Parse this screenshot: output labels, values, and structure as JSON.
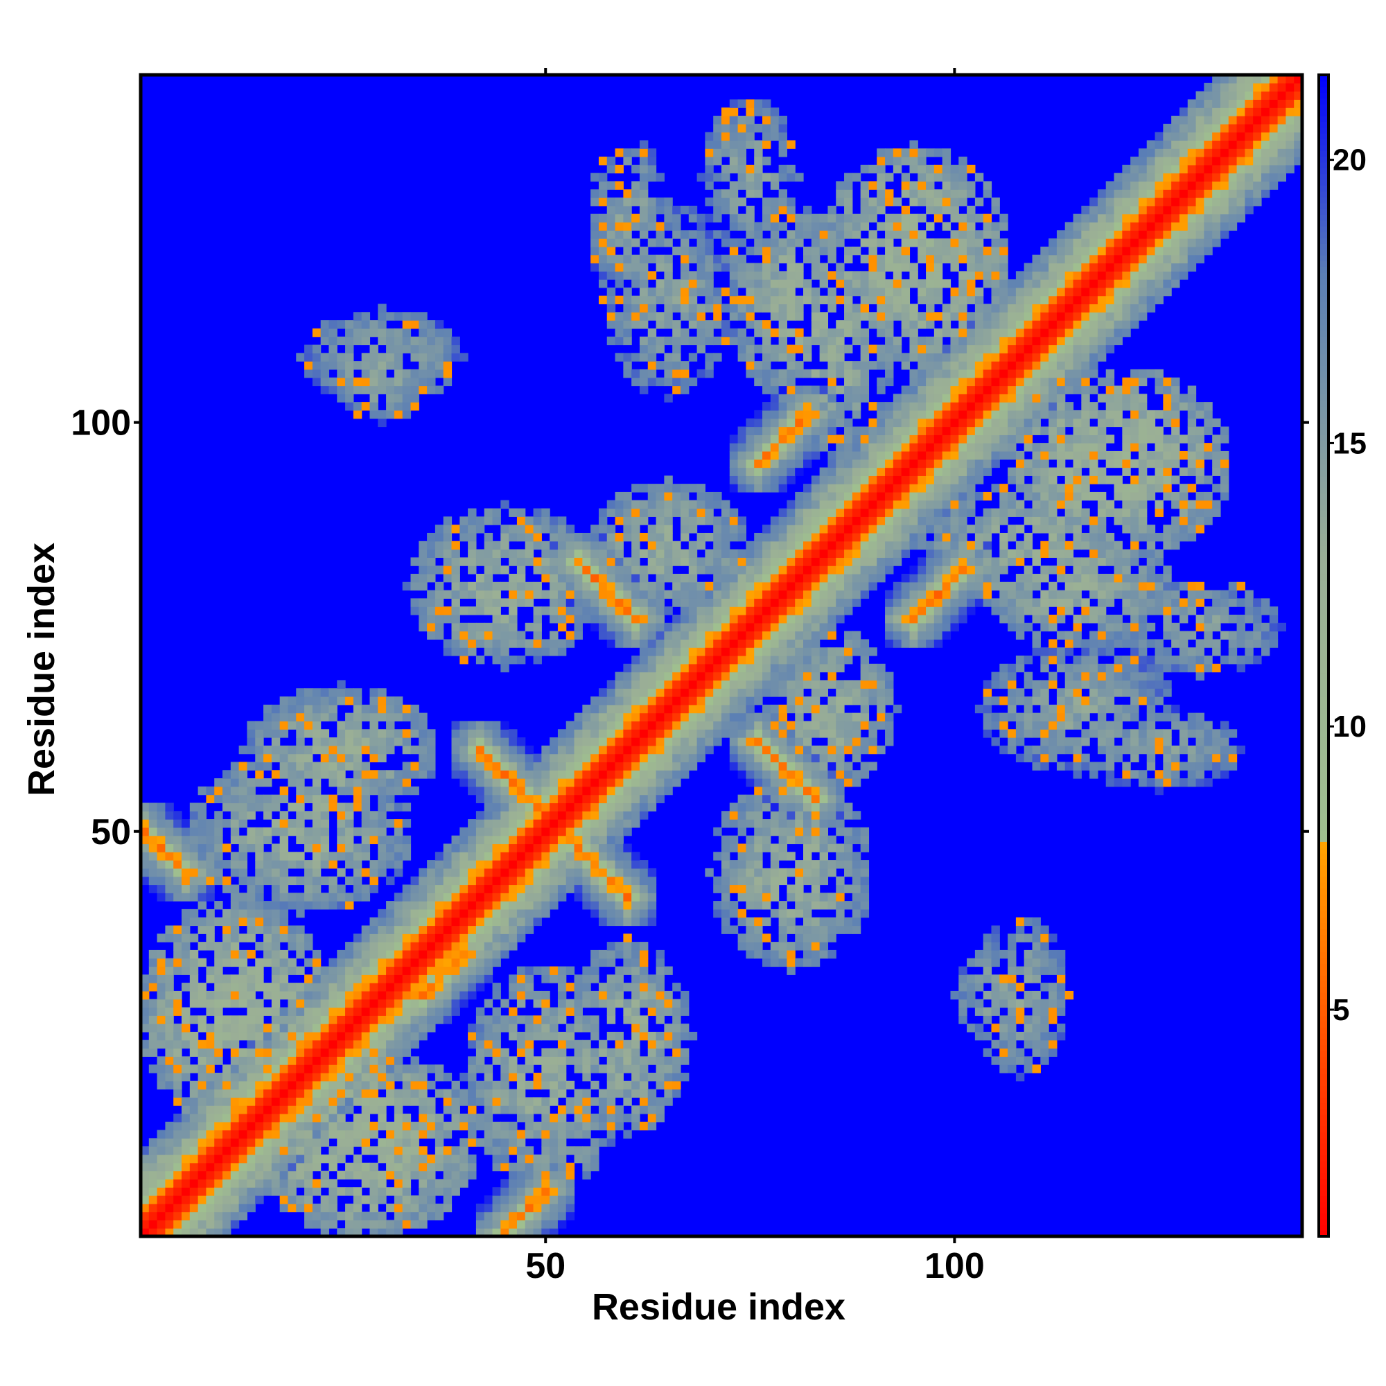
{
  "chart_data": {
    "type": "heatmap",
    "title": "",
    "xlabel": "Residue index",
    "ylabel": "Residue index",
    "n_residues": 142,
    "xlim": [
      1,
      142
    ],
    "ylim": [
      1,
      142
    ],
    "x_ticks": [
      50,
      100
    ],
    "y_ticks": [
      50,
      100
    ],
    "colorbar": {
      "min": 1,
      "max": 21.5,
      "ticks": [
        5,
        10,
        15,
        20
      ],
      "cutoff": 8,
      "stops": [
        {
          "value": 1,
          "color": "#ff0000"
        },
        {
          "value": 4,
          "color": "#ff4500"
        },
        {
          "value": 8,
          "color": "#ffa500"
        },
        {
          "value": 8.01,
          "color": "#9fbf8f"
        },
        {
          "value": 13,
          "color": "#9aae96"
        },
        {
          "value": 18,
          "color": "#5b7fb5"
        },
        {
          "value": 21.5,
          "color": "#0000ff"
        }
      ]
    },
    "background_value": 21.5,
    "diagonal_band": {
      "core_width": 2,
      "near_width": 4,
      "halo_width": 10
    },
    "contact_bands": [
      {
        "kind": "antiparallel",
        "i_from": 1,
        "i_to": 6,
        "j_from": 50,
        "j_to": 45
      },
      {
        "kind": "antiparallel",
        "i_from": 45,
        "i_to": 50,
        "j_from": 1,
        "j_to": 6
      },
      {
        "kind": "antiparallel",
        "i_from": 42,
        "i_to": 49,
        "j_from": 60,
        "j_to": 53
      },
      {
        "kind": "antiparallel",
        "i_from": 53,
        "i_to": 60,
        "j_from": 49,
        "j_to": 42
      },
      {
        "kind": "antiparallel",
        "i_from": 54,
        "i_to": 61,
        "j_from": 83,
        "j_to": 76
      },
      {
        "kind": "antiparallel",
        "i_from": 76,
        "i_to": 83,
        "j_from": 61,
        "j_to": 54
      },
      {
        "kind": "parallel",
        "i_from": 76,
        "i_to": 82,
        "j_from": 95,
        "j_to": 101
      },
      {
        "kind": "parallel",
        "i_from": 95,
        "i_to": 101,
        "j_from": 76,
        "j_to": 82
      },
      {
        "kind": "parallel",
        "i_from": 35,
        "i_to": 40,
        "j_from": 30,
        "j_to": 35
      }
    ],
    "contact_blobs": [
      {
        "i": 12,
        "j": 28,
        "ri": 12,
        "rj": 14,
        "value": 12
      },
      {
        "i": 28,
        "j": 12,
        "ri": 14,
        "rj": 12,
        "value": 12
      },
      {
        "i": 25,
        "j": 60,
        "ri": 12,
        "rj": 8,
        "value": 13
      },
      {
        "i": 60,
        "j": 25,
        "ri": 8,
        "rj": 12,
        "value": 13
      },
      {
        "i": 50,
        "j": 20,
        "ri": 10,
        "rj": 14,
        "value": 13
      },
      {
        "i": 20,
        "j": 50,
        "ri": 14,
        "rj": 10,
        "value": 13
      },
      {
        "i": 45,
        "j": 80,
        "ri": 12,
        "rj": 10,
        "value": 13
      },
      {
        "i": 80,
        "j": 45,
        "ri": 10,
        "rj": 12,
        "value": 13
      },
      {
        "i": 30,
        "j": 108,
        "ri": 10,
        "rj": 6,
        "value": 14
      },
      {
        "i": 108,
        "j": 30,
        "ri": 6,
        "rj": 10,
        "value": 14
      },
      {
        "i": 60,
        "j": 125,
        "ri": 5,
        "rj": 10,
        "value": 14
      },
      {
        "i": 125,
        "j": 60,
        "ri": 10,
        "rj": 5,
        "value": 14
      },
      {
        "i": 80,
        "j": 115,
        "ri": 8,
        "rj": 12,
        "value": 13
      },
      {
        "i": 115,
        "j": 80,
        "ri": 12,
        "rj": 8,
        "value": 13
      },
      {
        "i": 95,
        "j": 120,
        "ri": 12,
        "rj": 14,
        "value": 12
      },
      {
        "i": 120,
        "j": 95,
        "ri": 14,
        "rj": 12,
        "value": 12
      },
      {
        "i": 110,
        "j": 85,
        "ri": 14,
        "rj": 8,
        "value": 13
      },
      {
        "i": 85,
        "j": 110,
        "ri": 8,
        "rj": 14,
        "value": 13
      },
      {
        "i": 115,
        "j": 65,
        "ri": 12,
        "rj": 8,
        "value": 14
      },
      {
        "i": 65,
        "j": 115,
        "ri": 8,
        "rj": 12,
        "value": 14
      },
      {
        "i": 105,
        "j": 30,
        "ri": 5,
        "rj": 6,
        "value": 14
      },
      {
        "i": 30,
        "j": 105,
        "ri": 6,
        "rj": 5,
        "value": 14
      },
      {
        "i": 130,
        "j": 75,
        "ri": 10,
        "rj": 6,
        "value": 14
      },
      {
        "i": 75,
        "j": 130,
        "ri": 6,
        "rj": 10,
        "value": 14
      },
      {
        "i": 65,
        "j": 85,
        "ri": 10,
        "rj": 8,
        "value": 13
      },
      {
        "i": 85,
        "j": 65,
        "ri": 8,
        "rj": 10,
        "value": 13
      }
    ]
  }
}
